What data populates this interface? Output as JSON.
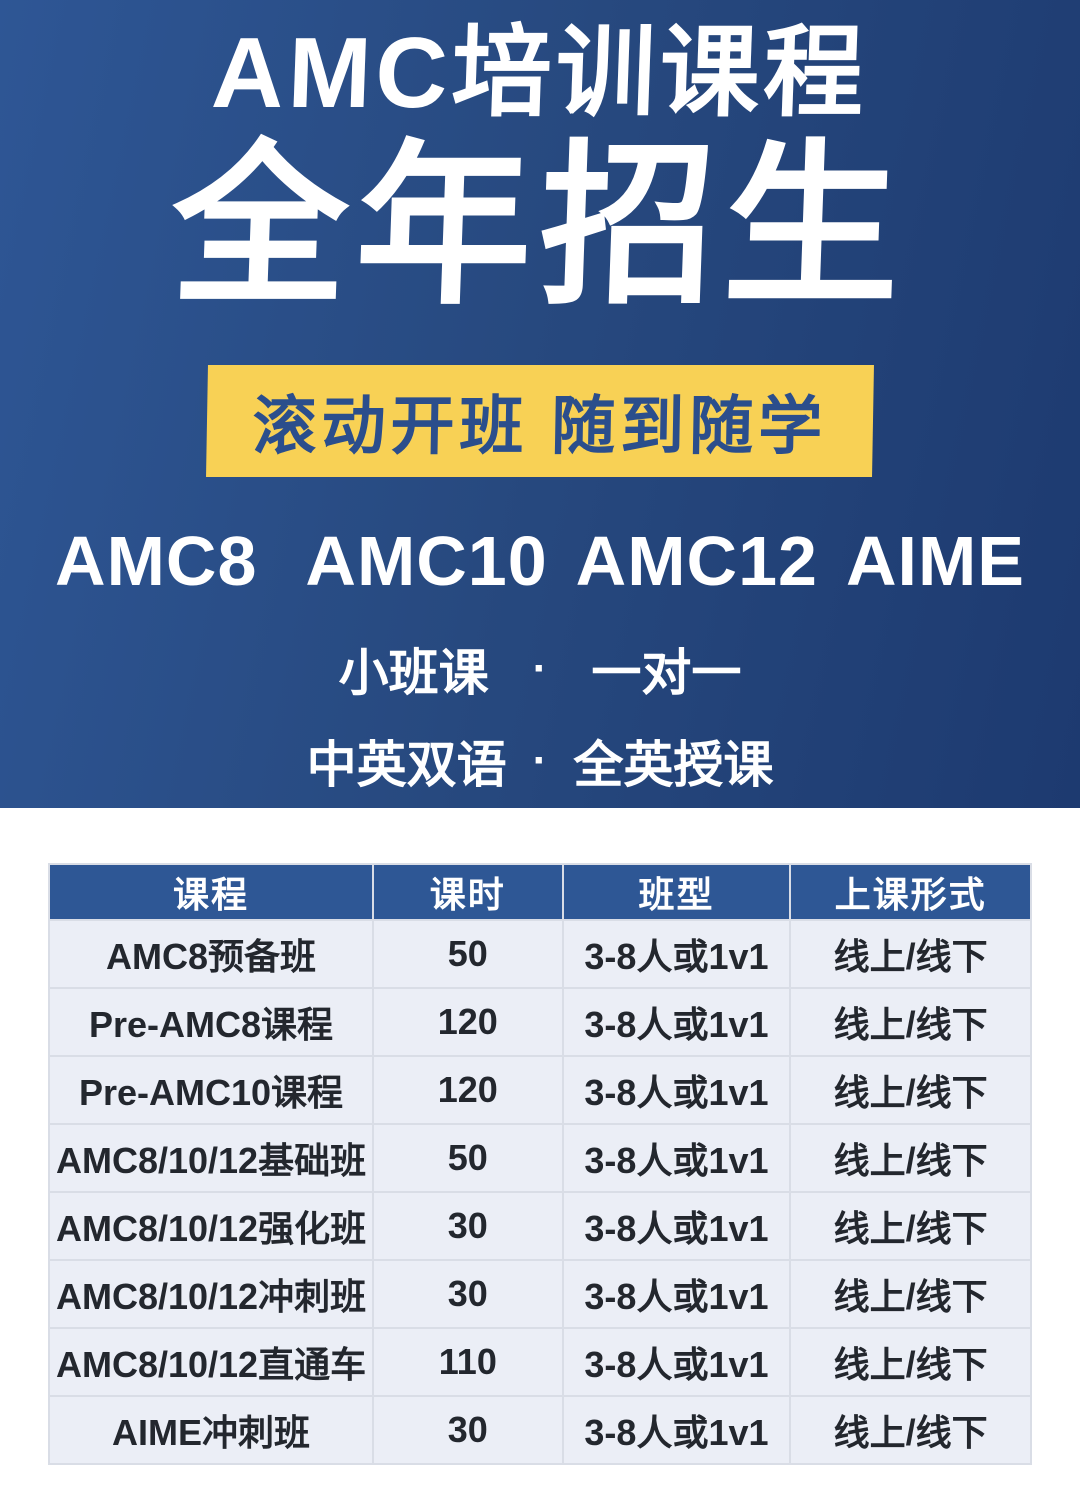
{
  "hero": {
    "title": "AMC培训课程",
    "headline": "全年招生",
    "banner_text": "滚动开班 随到随学",
    "programs": [
      "AMC8",
      "AMC10",
      "AMC12",
      "AIME"
    ],
    "features": [
      {
        "left": "小班课",
        "separator": "·",
        "right": "一对一"
      },
      {
        "left": "中英双语",
        "separator": "·",
        "right": "全英授课"
      }
    ]
  },
  "course_table": {
    "headers": [
      "课程",
      "课时",
      "班型",
      "上课形式"
    ],
    "rows": [
      [
        "AMC8预备班",
        "50",
        "3-8人或1v1",
        "线上/线下"
      ],
      [
        "Pre-AMC8课程",
        "120",
        "3-8人或1v1",
        "线上/线下"
      ],
      [
        "Pre-AMC10课程",
        "120",
        "3-8人或1v1",
        "线上/线下"
      ],
      [
        "AMC8/10/12基础班",
        "50",
        "3-8人或1v1",
        "线上/线下"
      ],
      [
        "AMC8/10/12强化班",
        "30",
        "3-8人或1v1",
        "线上/线下"
      ],
      [
        "AMC8/10/12冲刺班",
        "30",
        "3-8人或1v1",
        "线上/线下"
      ],
      [
        "AMC8/10/12直通车",
        "110",
        "3-8人或1v1",
        "线上/线下"
      ],
      [
        "AIME冲刺班",
        "30",
        "3-8人或1v1",
        "线上/线下"
      ]
    ]
  },
  "colors": {
    "hero_gradient_start": "#2E5695",
    "hero_gradient_end": "#1D3A70",
    "banner_background": "#F8D155",
    "banner_text": "#2B4E8C",
    "table_header_background": "#2E5795",
    "table_row_background": "#EBEEF6",
    "table_border": "#D9DDE6",
    "table_text": "#23272E"
  }
}
